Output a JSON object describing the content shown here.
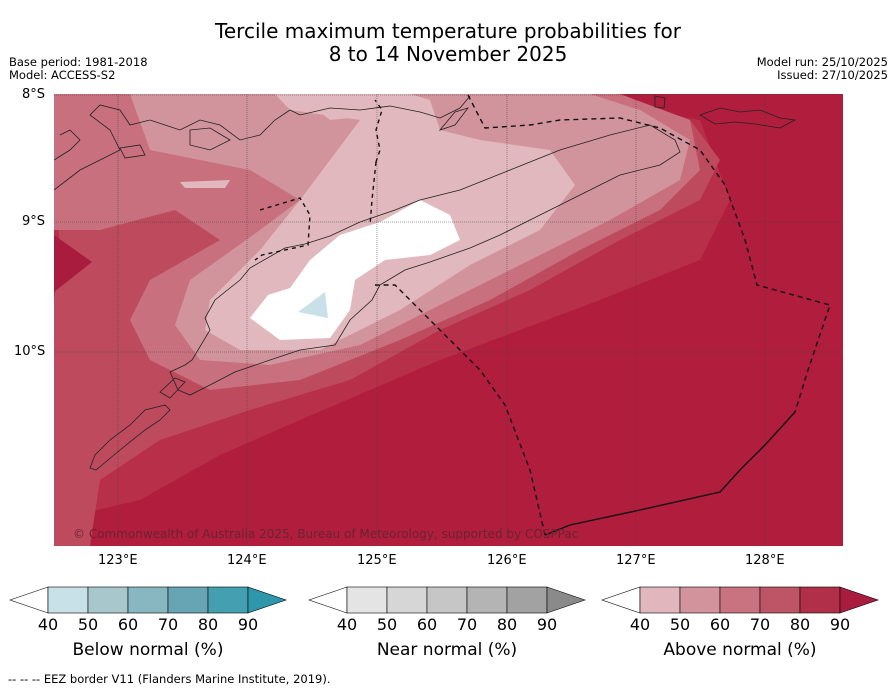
{
  "title_line1": "Tercile maximum temperature probabilities for",
  "title_line2": "8 to 14 November 2025",
  "base_period": "Base period: 1981-2018",
  "model": "Model: ACCESS-S2",
  "model_run": "Model run: 25/10/2025",
  "issued": "Issued: 27/10/2025",
  "lat_labels": [
    "8°S",
    "9°S",
    "10°S"
  ],
  "lon_labels": [
    "123°E",
    "124°E",
    "125°E",
    "126°E",
    "127°E",
    "128°E"
  ],
  "copyright": "© Commonwealth of Australia 2025, Bureau of Meteorology, supported by COSPPac",
  "colorbars": [
    {
      "name": "below",
      "label": "Below normal (%)",
      "ticks": [
        "40",
        "50",
        "60",
        "70",
        "80",
        "90"
      ],
      "colors": [
        "#ffffff",
        "#c8e1e8",
        "#a8c7cd",
        "#89b7c1",
        "#67a5b4",
        "#44a0b1",
        "#2f97ac"
      ]
    },
    {
      "name": "near",
      "label": "Near normal (%)",
      "ticks": [
        "40",
        "50",
        "60",
        "70",
        "80",
        "90"
      ],
      "colors": [
        "#ffffff",
        "#e4e4e4",
        "#d6d6d6",
        "#c6c6c6",
        "#b4b4b4",
        "#a2a2a2",
        "#8a8a8a"
      ]
    },
    {
      "name": "above",
      "label": "Above normal (%)",
      "ticks": [
        "40",
        "50",
        "60",
        "70",
        "80",
        "90"
      ],
      "colors": [
        "#ffffff",
        "#e1b6bd",
        "#d2939d",
        "#c8737f",
        "#bd5566",
        "#b22f49",
        "#a91c3d"
      ]
    }
  ],
  "footnote": "--  --  -- EEZ border V11 (Flanders Marine Institute, 2019)."
}
